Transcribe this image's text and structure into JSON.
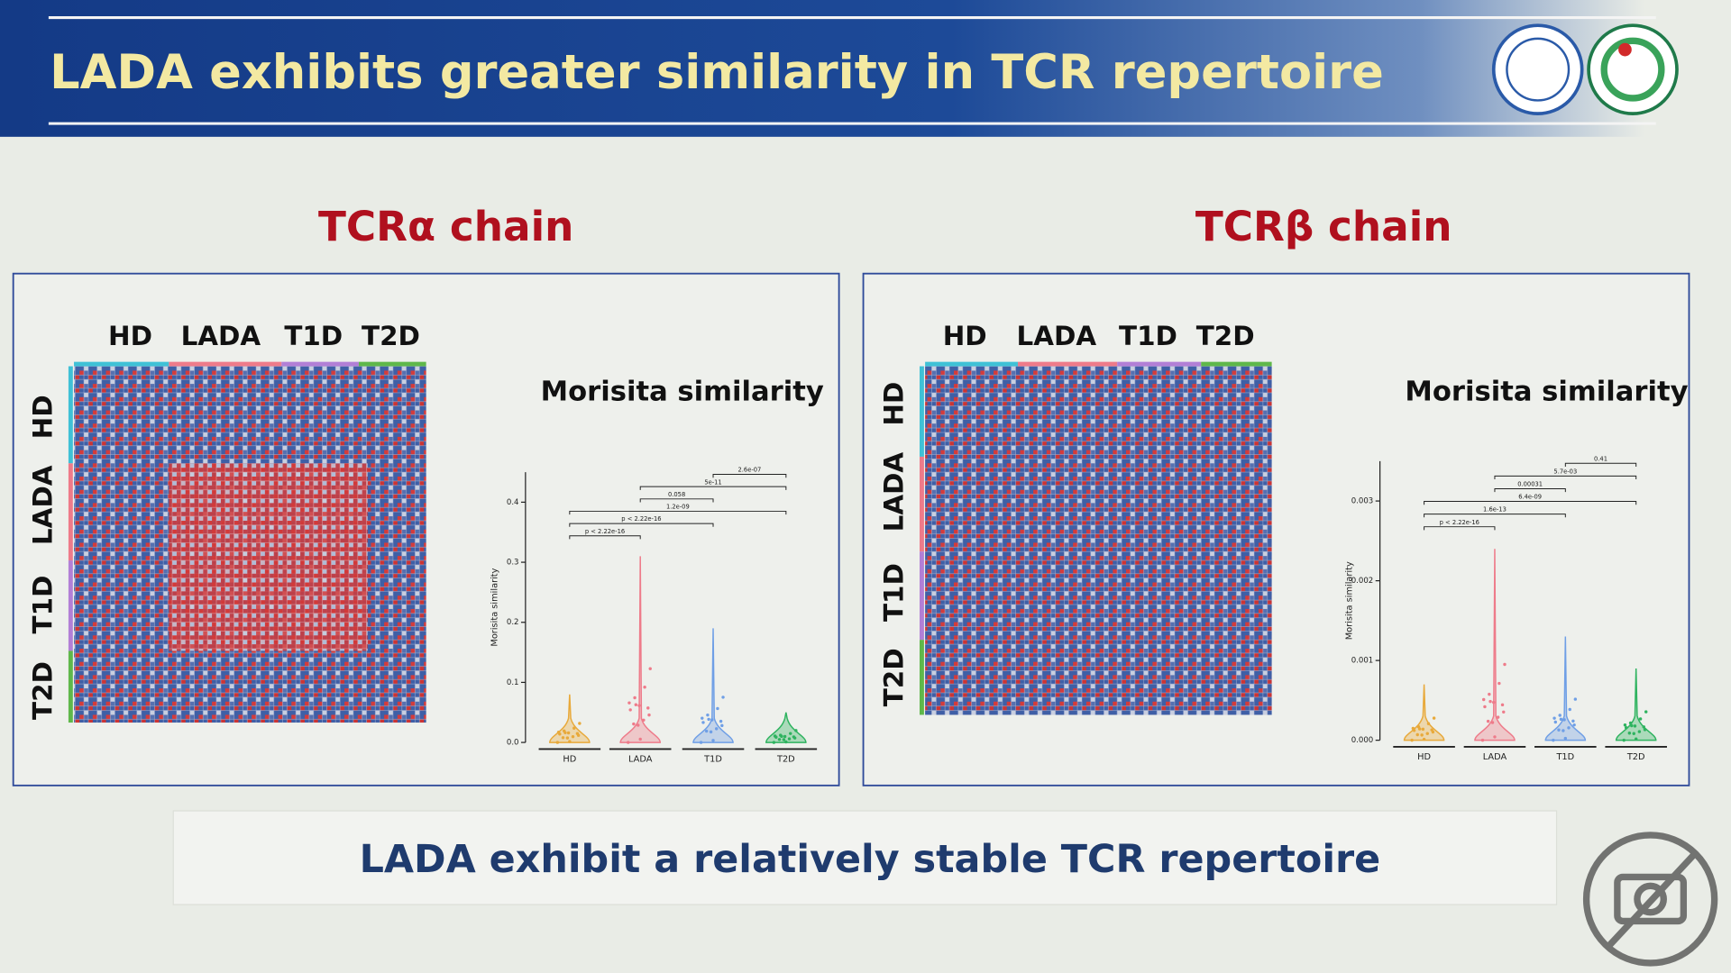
{
  "header": {
    "title": "LADA  exhibits greater similarity in TCR repertoire"
  },
  "panels": [
    {
      "title": "TCRα chain",
      "heatmap": {
        "groups": [
          "HD",
          "LADA",
          "T1D",
          "T2D"
        ]
      },
      "plot": {
        "title": "Morisita  similarity",
        "y_label": "Morisita similarity",
        "categories": [
          "HD",
          "LADA",
          "T1D",
          "T2D"
        ],
        "colors": [
          "#e8a93a",
          "#ee7b8a",
          "#6f9fe6",
          "#2eb35f"
        ],
        "max_values": [
          0.08,
          0.31,
          0.19,
          0.05
        ],
        "ylim": [
          0,
          0.45
        ],
        "yticks": [
          {
            "value": 0,
            "label": "0.0"
          },
          0.1,
          0.2,
          0.3,
          0.4
        ],
        "comparisons": [
          {
            "label": "2.6e-07",
            "pair": [
              2,
              3
            ]
          },
          {
            "label": "5e-11",
            "pair": [
              1,
              3
            ]
          },
          {
            "label": "0.058",
            "pair": [
              1,
              2
            ]
          },
          {
            "label": "1.2e-09",
            "pair": [
              0,
              3
            ]
          },
          {
            "label": "p < 2.22e-16",
            "pair": [
              0,
              2
            ]
          },
          {
            "label": "p < 2.22e-16",
            "pair": [
              0,
              1
            ]
          }
        ]
      }
    },
    {
      "title": "TCRβ chain",
      "heatmap": {
        "groups": [
          "HD",
          "LADA",
          "T1D",
          "T2D"
        ]
      },
      "plot": {
        "title": "Morisita  similarity",
        "y_label": "Morisita similarity",
        "categories": [
          "HD",
          "LADA",
          "T1D",
          "T2D"
        ],
        "colors": [
          "#e8a93a",
          "#ee7b8a",
          "#6f9fe6",
          "#2eb35f"
        ],
        "max_values": [
          0.0007,
          0.0024,
          0.0013,
          0.0009
        ],
        "ylim": [
          0,
          0.0035
        ],
        "yticks": [
          {
            "value": 0,
            "label": "0.000"
          },
          {
            "value": 0.001,
            "label": "0.001"
          },
          {
            "value": 0.002,
            "label": "0.002"
          },
          {
            "value": 0.003,
            "label": "0.003"
          }
        ],
        "comparisons": [
          {
            "label": "0.41",
            "pair": [
              2,
              3
            ]
          },
          {
            "label": "5.7e-03",
            "pair": [
              1,
              3
            ]
          },
          {
            "label": "0.00031",
            "pair": [
              1,
              2
            ]
          },
          {
            "label": "6.4e-09",
            "pair": [
              0,
              3
            ]
          },
          {
            "label": "1.6e-13",
            "pair": [
              0,
              2
            ]
          },
          {
            "label": "p < 2.22e-16",
            "pair": [
              0,
              1
            ]
          }
        ]
      }
    }
  ],
  "footer": {
    "text": "LADA exhibit a relatively stable TCR repertoire"
  }
}
